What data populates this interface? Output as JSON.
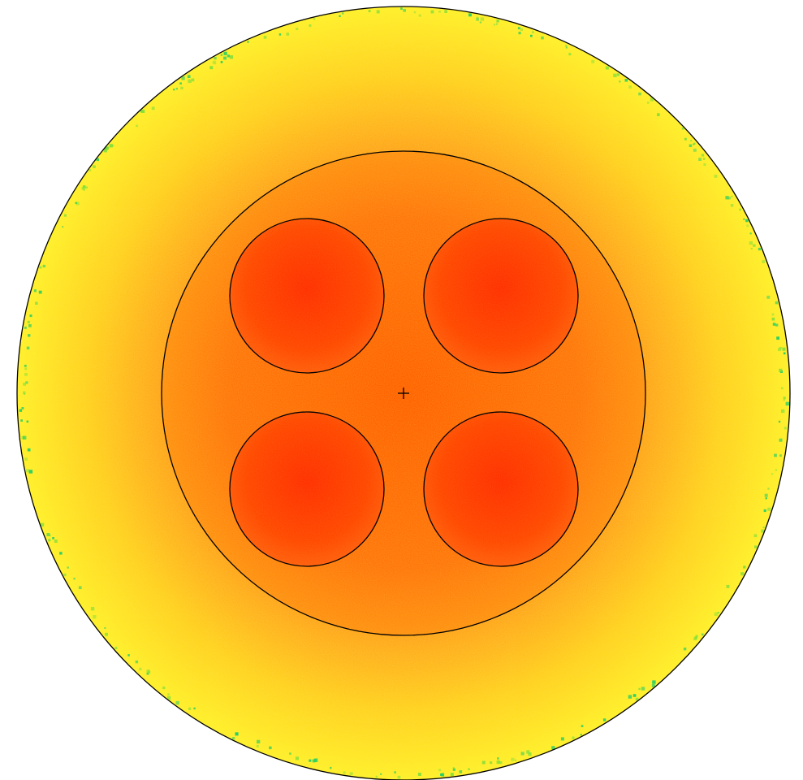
{
  "figure": {
    "description_text": "",
    "colors": {
      "background": "#ffffff",
      "outline": "#000000",
      "hot": "#ff3300",
      "mid": "#ff8c00",
      "cool": "#ffff00",
      "edge_speckle": "#22cc66"
    },
    "icons": {
      "center": "crosshair-icon"
    }
  }
}
